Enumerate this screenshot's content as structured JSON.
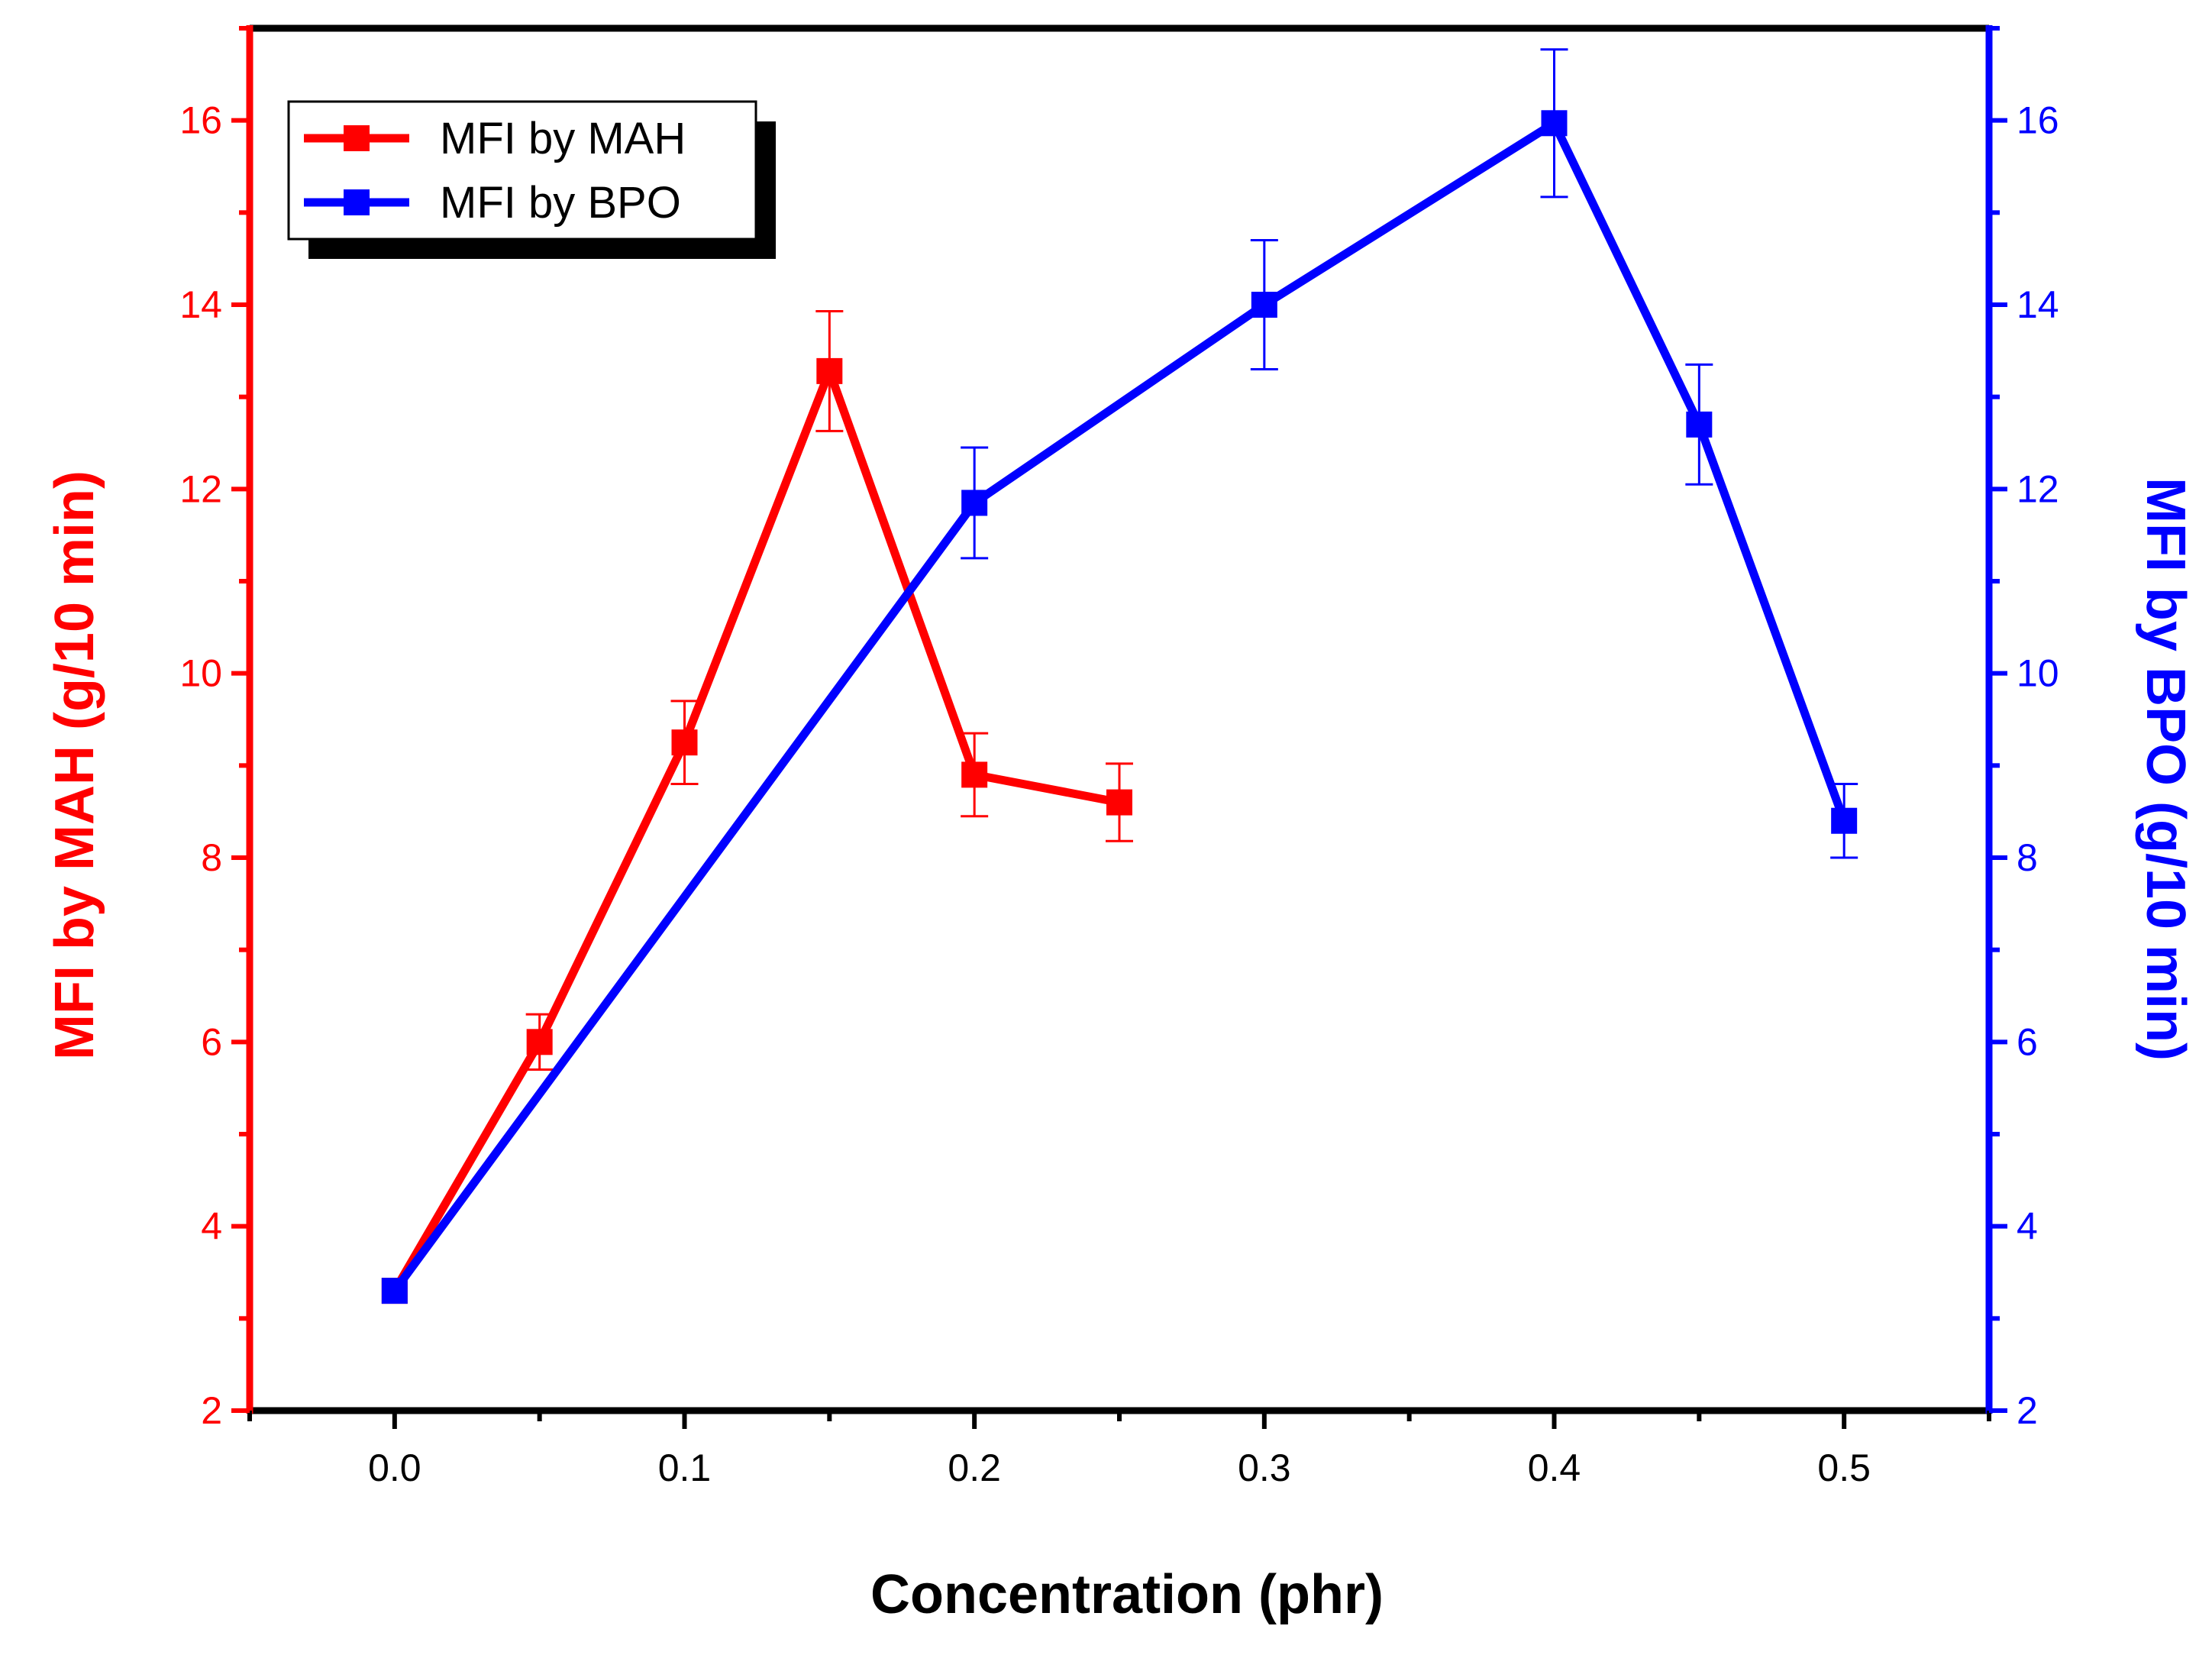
{
  "chart_data": {
    "type": "line",
    "xlabel": "Concentration (phr)",
    "ylabel_left": "MFI by MAH (g/10 min)",
    "ylabel_right": "MFI by BPO (g/10 min)",
    "xlim": [
      -0.05,
      0.55
    ],
    "x_ticks": [
      "0.0",
      "0.1",
      "0.2",
      "0.3",
      "0.4",
      "0.5"
    ],
    "ylim_left": [
      2,
      17
    ],
    "ylim_right": [
      2,
      17
    ],
    "y_ticks_left": [
      "2",
      "4",
      "6",
      "8",
      "10",
      "12",
      "14",
      "16"
    ],
    "y_ticks_right": [
      "2",
      "4",
      "6",
      "8",
      "10",
      "12",
      "14",
      "16"
    ],
    "legend_position": "top-left",
    "series": [
      {
        "name": "MFI by MAH",
        "axis": "left",
        "color": "#ff0000",
        "x": [
          0.0,
          0.05,
          0.1,
          0.15,
          0.2,
          0.25
        ],
        "y": [
          3.3,
          6.0,
          9.25,
          13.28,
          8.9,
          8.6
        ],
        "error": [
          0.0,
          0.3,
          0.45,
          0.65,
          0.45,
          0.42
        ]
      },
      {
        "name": "MFI by BPO",
        "axis": "right",
        "color": "#0000ff",
        "x": [
          0.0,
          0.2,
          0.3,
          0.4,
          0.45,
          0.5
        ],
        "y": [
          3.3,
          11.85,
          14.0,
          15.97,
          12.7,
          8.4
        ],
        "error": [
          0.0,
          0.6,
          0.7,
          0.8,
          0.65,
          0.4
        ]
      }
    ]
  }
}
